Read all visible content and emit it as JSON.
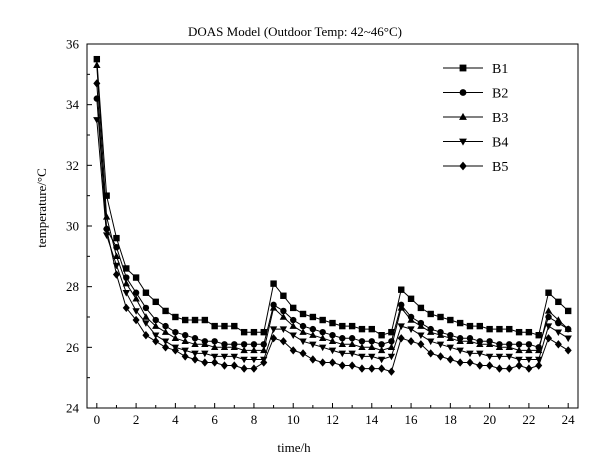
{
  "chart_data": {
    "type": "line",
    "title": "DOAS Model (Outdoor Temp: 42~46°C)",
    "xlabel": "time/h",
    "ylabel": "temperature/°C",
    "xlim": [
      -0.5,
      24.5
    ],
    "ylim": [
      24,
      36
    ],
    "xticks": [
      "0",
      "2",
      "4",
      "6",
      "8",
      "10",
      "12",
      "14",
      "16",
      "18",
      "20",
      "22",
      "24"
    ],
    "yticks": [
      "24",
      "26",
      "28",
      "30",
      "32",
      "34",
      "36"
    ],
    "legend_position": "top-right",
    "grid": false,
    "x": [
      0,
      0.5,
      1,
      1.5,
      2,
      2.5,
      3,
      3.5,
      4,
      4.5,
      5,
      5.5,
      6,
      6.5,
      7,
      7.5,
      8,
      8.5,
      9,
      9.5,
      10,
      10.5,
      11,
      11.5,
      12,
      12.5,
      13,
      13.5,
      14,
      14.5,
      15,
      15.5,
      16,
      16.5,
      17,
      17.5,
      18,
      18.5,
      19,
      19.5,
      20,
      20.5,
      21,
      21.5,
      22,
      22.5,
      23,
      23.5,
      24
    ],
    "series": [
      {
        "name": "B1",
        "marker": "square",
        "values": [
          35.5,
          31.0,
          29.6,
          28.6,
          28.3,
          27.8,
          27.5,
          27.2,
          27.0,
          26.9,
          26.9,
          26.9,
          26.7,
          26.7,
          26.7,
          26.5,
          26.5,
          26.5,
          28.1,
          27.7,
          27.3,
          27.1,
          27.0,
          26.9,
          26.8,
          26.7,
          26.7,
          26.6,
          26.6,
          26.4,
          26.5,
          27.9,
          27.6,
          27.3,
          27.1,
          27.0,
          26.9,
          26.8,
          26.7,
          26.7,
          26.6,
          26.6,
          26.6,
          26.5,
          26.5,
          26.4,
          27.8,
          27.5,
          27.2
        ]
      },
      {
        "name": "B2",
        "marker": "circle",
        "values": [
          34.2,
          29.9,
          29.3,
          28.3,
          27.8,
          27.3,
          26.9,
          26.7,
          26.5,
          26.4,
          26.3,
          26.2,
          26.2,
          26.1,
          26.1,
          26.1,
          26.1,
          26.1,
          27.4,
          27.2,
          26.9,
          26.7,
          26.6,
          26.5,
          26.4,
          26.3,
          26.3,
          26.2,
          26.2,
          26.1,
          26.2,
          27.4,
          27.0,
          26.8,
          26.6,
          26.5,
          26.4,
          26.3,
          26.3,
          26.2,
          26.2,
          26.1,
          26.1,
          26.1,
          26.1,
          26.0,
          27.0,
          26.8,
          26.6
        ]
      },
      {
        "name": "B3",
        "marker": "triangle-up",
        "values": [
          35.3,
          30.3,
          29.0,
          28.1,
          27.6,
          27.0,
          26.7,
          26.5,
          26.3,
          26.2,
          26.1,
          26.1,
          26.0,
          26.0,
          26.0,
          25.9,
          25.9,
          25.9,
          27.3,
          27.0,
          26.7,
          26.5,
          26.4,
          26.3,
          26.2,
          26.1,
          26.1,
          26.0,
          26.0,
          25.9,
          26.0,
          27.3,
          26.9,
          26.7,
          26.5,
          26.4,
          26.3,
          26.2,
          26.2,
          26.1,
          26.1,
          26.0,
          26.0,
          25.9,
          25.9,
          25.9,
          27.2,
          26.9,
          26.6
        ]
      },
      {
        "name": "B4",
        "marker": "triangle-down",
        "values": [
          33.5,
          29.7,
          28.7,
          27.8,
          27.2,
          26.8,
          26.4,
          26.2,
          26.0,
          25.9,
          25.8,
          25.8,
          25.7,
          25.7,
          25.7,
          25.6,
          25.6,
          25.6,
          26.6,
          26.6,
          26.4,
          26.2,
          26.1,
          26.0,
          25.9,
          25.8,
          25.8,
          25.7,
          25.7,
          25.6,
          25.7,
          26.7,
          26.6,
          26.4,
          26.2,
          26.1,
          26.0,
          25.9,
          25.8,
          25.8,
          25.7,
          25.7,
          25.7,
          25.6,
          25.6,
          25.6,
          26.7,
          26.5,
          26.3
        ]
      },
      {
        "name": "B5",
        "marker": "diamond",
        "values": [
          34.7,
          29.9,
          28.4,
          27.3,
          26.9,
          26.4,
          26.2,
          26.0,
          25.9,
          25.7,
          25.6,
          25.5,
          25.5,
          25.4,
          25.4,
          25.3,
          25.3,
          25.5,
          26.3,
          26.2,
          25.9,
          25.8,
          25.6,
          25.5,
          25.5,
          25.4,
          25.4,
          25.3,
          25.3,
          25.3,
          25.2,
          26.3,
          26.2,
          26.1,
          25.8,
          25.7,
          25.6,
          25.5,
          25.5,
          25.4,
          25.4,
          25.3,
          25.3,
          25.4,
          25.3,
          25.4,
          26.3,
          26.1,
          25.9
        ]
      }
    ]
  }
}
